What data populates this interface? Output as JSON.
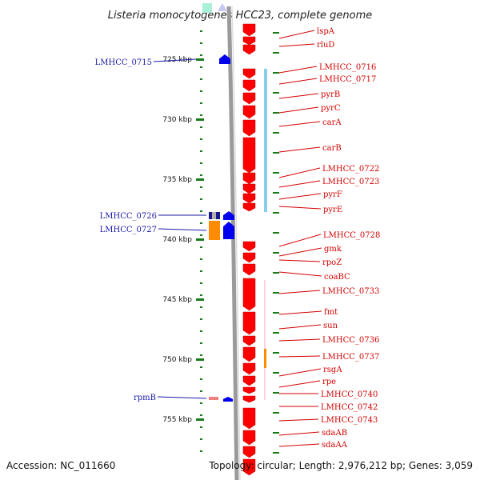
{
  "title": "Listeria monocytogenes HCC23, complete genome",
  "accession": "Accession: NC_011660",
  "topology": "Topology: circular; Length: 2,976,212 bp; Genes: 3,059",
  "scale_ticks_kbp": [
    "725 kbp",
    "730 kbp",
    "735 kbp",
    "740 kbp",
    "745 kbp",
    "750 kbp",
    "755 kbp"
  ],
  "genes_forward": [
    "lspA",
    "rluD",
    "LMHCC_0716",
    "LMHCC_0717",
    "pyrB",
    "pyrC",
    "carA",
    "carB",
    "LMHCC_0722",
    "LMHCC_0723",
    "pyrF",
    "pyrE",
    "LMHCC_0728",
    "gmk",
    "rpoZ",
    "coaBC",
    "LMHCC_0733",
    "fmt",
    "sun",
    "LMHCC_0736",
    "LMHCC_0737",
    "rsgA",
    "rpe",
    "LMHCC_0740",
    "LMHCC_0742",
    "LMHCC_0743",
    "sdaAB",
    "sdaAA"
  ],
  "genes_reverse": [
    "LMHCC_0715",
    "LMHCC_0726",
    "LMHCC_0727",
    "rpmB"
  ],
  "colors": {
    "forward_label": "#d40000",
    "reverse_label": "#1a1aa6",
    "forward_gene": "#ff0000",
    "reverse_gene": "#0000ee",
    "scale": "#1a7a1a",
    "backbone": "#8a8a8a"
  }
}
